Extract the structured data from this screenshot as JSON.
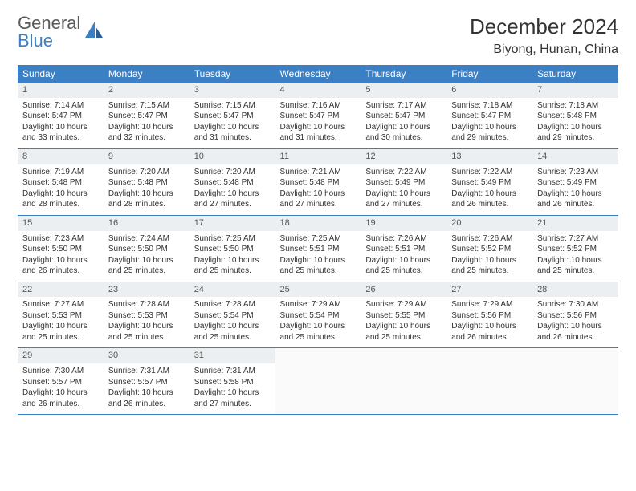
{
  "logo": {
    "text1": "General",
    "text2": "Blue"
  },
  "title": "December 2024",
  "location": "Biyong, Hunan, China",
  "colors": {
    "header_bg": "#3b7fc4",
    "header_fg": "#ffffff",
    "daynum_bg": "#eceff1",
    "border": "#3b7fc4",
    "logo_gray": "#5a5a5a",
    "logo_blue": "#3b7fc4"
  },
  "weekdays": [
    "Sunday",
    "Monday",
    "Tuesday",
    "Wednesday",
    "Thursday",
    "Friday",
    "Saturday"
  ],
  "days": [
    {
      "n": "1",
      "sr": "7:14 AM",
      "ss": "5:47 PM",
      "dl": "10 hours and 33 minutes."
    },
    {
      "n": "2",
      "sr": "7:15 AM",
      "ss": "5:47 PM",
      "dl": "10 hours and 32 minutes."
    },
    {
      "n": "3",
      "sr": "7:15 AM",
      "ss": "5:47 PM",
      "dl": "10 hours and 31 minutes."
    },
    {
      "n": "4",
      "sr": "7:16 AM",
      "ss": "5:47 PM",
      "dl": "10 hours and 31 minutes."
    },
    {
      "n": "5",
      "sr": "7:17 AM",
      "ss": "5:47 PM",
      "dl": "10 hours and 30 minutes."
    },
    {
      "n": "6",
      "sr": "7:18 AM",
      "ss": "5:47 PM",
      "dl": "10 hours and 29 minutes."
    },
    {
      "n": "7",
      "sr": "7:18 AM",
      "ss": "5:48 PM",
      "dl": "10 hours and 29 minutes."
    },
    {
      "n": "8",
      "sr": "7:19 AM",
      "ss": "5:48 PM",
      "dl": "10 hours and 28 minutes."
    },
    {
      "n": "9",
      "sr": "7:20 AM",
      "ss": "5:48 PM",
      "dl": "10 hours and 28 minutes."
    },
    {
      "n": "10",
      "sr": "7:20 AM",
      "ss": "5:48 PM",
      "dl": "10 hours and 27 minutes."
    },
    {
      "n": "11",
      "sr": "7:21 AM",
      "ss": "5:48 PM",
      "dl": "10 hours and 27 minutes."
    },
    {
      "n": "12",
      "sr": "7:22 AM",
      "ss": "5:49 PM",
      "dl": "10 hours and 27 minutes."
    },
    {
      "n": "13",
      "sr": "7:22 AM",
      "ss": "5:49 PM",
      "dl": "10 hours and 26 minutes."
    },
    {
      "n": "14",
      "sr": "7:23 AM",
      "ss": "5:49 PM",
      "dl": "10 hours and 26 minutes."
    },
    {
      "n": "15",
      "sr": "7:23 AM",
      "ss": "5:50 PM",
      "dl": "10 hours and 26 minutes."
    },
    {
      "n": "16",
      "sr": "7:24 AM",
      "ss": "5:50 PM",
      "dl": "10 hours and 25 minutes."
    },
    {
      "n": "17",
      "sr": "7:25 AM",
      "ss": "5:50 PM",
      "dl": "10 hours and 25 minutes."
    },
    {
      "n": "18",
      "sr": "7:25 AM",
      "ss": "5:51 PM",
      "dl": "10 hours and 25 minutes."
    },
    {
      "n": "19",
      "sr": "7:26 AM",
      "ss": "5:51 PM",
      "dl": "10 hours and 25 minutes."
    },
    {
      "n": "20",
      "sr": "7:26 AM",
      "ss": "5:52 PM",
      "dl": "10 hours and 25 minutes."
    },
    {
      "n": "21",
      "sr": "7:27 AM",
      "ss": "5:52 PM",
      "dl": "10 hours and 25 minutes."
    },
    {
      "n": "22",
      "sr": "7:27 AM",
      "ss": "5:53 PM",
      "dl": "10 hours and 25 minutes."
    },
    {
      "n": "23",
      "sr": "7:28 AM",
      "ss": "5:53 PM",
      "dl": "10 hours and 25 minutes."
    },
    {
      "n": "24",
      "sr": "7:28 AM",
      "ss": "5:54 PM",
      "dl": "10 hours and 25 minutes."
    },
    {
      "n": "25",
      "sr": "7:29 AM",
      "ss": "5:54 PM",
      "dl": "10 hours and 25 minutes."
    },
    {
      "n": "26",
      "sr": "7:29 AM",
      "ss": "5:55 PM",
      "dl": "10 hours and 25 minutes."
    },
    {
      "n": "27",
      "sr": "7:29 AM",
      "ss": "5:56 PM",
      "dl": "10 hours and 26 minutes."
    },
    {
      "n": "28",
      "sr": "7:30 AM",
      "ss": "5:56 PM",
      "dl": "10 hours and 26 minutes."
    },
    {
      "n": "29",
      "sr": "7:30 AM",
      "ss": "5:57 PM",
      "dl": "10 hours and 26 minutes."
    },
    {
      "n": "30",
      "sr": "7:31 AM",
      "ss": "5:57 PM",
      "dl": "10 hours and 26 minutes."
    },
    {
      "n": "31",
      "sr": "7:31 AM",
      "ss": "5:58 PM",
      "dl": "10 hours and 27 minutes."
    }
  ],
  "labels": {
    "sunrise": "Sunrise: ",
    "sunset": "Sunset: ",
    "daylight": "Daylight: "
  }
}
